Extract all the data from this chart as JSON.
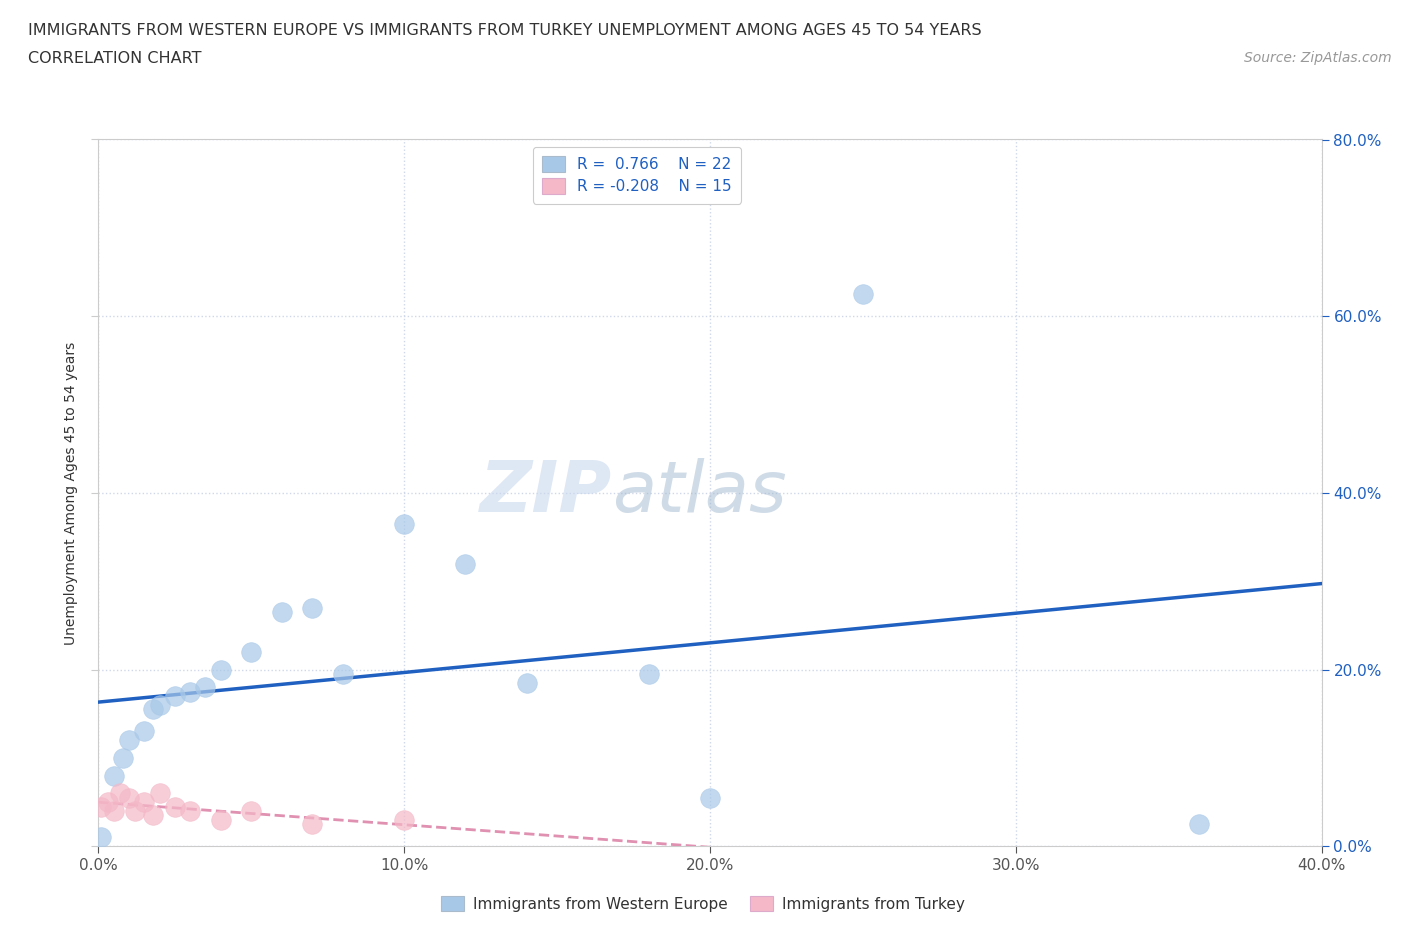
{
  "title_line1": "IMMIGRANTS FROM WESTERN EUROPE VS IMMIGRANTS FROM TURKEY UNEMPLOYMENT AMONG AGES 45 TO 54 YEARS",
  "title_line2": "CORRELATION CHART",
  "source_text": "Source: ZipAtlas.com",
  "ylabel": "Unemployment Among Ages 45 to 54 years",
  "watermark_zip": "ZIP",
  "watermark_atlas": "atlas",
  "western_europe_x": [
    0.001,
    0.005,
    0.008,
    0.01,
    0.015,
    0.018,
    0.02,
    0.025,
    0.03,
    0.035,
    0.04,
    0.05,
    0.06,
    0.07,
    0.08,
    0.1,
    0.12,
    0.14,
    0.18,
    0.2,
    0.25,
    0.36
  ],
  "western_europe_y": [
    0.01,
    0.08,
    0.1,
    0.12,
    0.13,
    0.155,
    0.16,
    0.17,
    0.175,
    0.18,
    0.2,
    0.22,
    0.265,
    0.27,
    0.195,
    0.365,
    0.32,
    0.185,
    0.195,
    0.055,
    0.625,
    0.025
  ],
  "turkey_x": [
    0.001,
    0.003,
    0.005,
    0.007,
    0.01,
    0.012,
    0.015,
    0.018,
    0.02,
    0.025,
    0.03,
    0.04,
    0.05,
    0.07,
    0.1
  ],
  "turkey_y": [
    0.045,
    0.05,
    0.04,
    0.06,
    0.055,
    0.04,
    0.05,
    0.035,
    0.06,
    0.045,
    0.04,
    0.03,
    0.04,
    0.025,
    0.03
  ],
  "R_western": 0.766,
  "N_western": 22,
  "R_turkey": -0.208,
  "N_turkey": 15,
  "blue_scatter_color": "#a8c8e8",
  "pink_scatter_color": "#f4b8c8",
  "blue_line_color": "#2060c0",
  "pink_line_color": "#e090b0",
  "xlim": [
    0.0,
    0.4
  ],
  "ylim": [
    0.0,
    0.8
  ],
  "xtick_values": [
    0.0,
    0.1,
    0.2,
    0.3,
    0.4
  ],
  "xtick_labels": [
    "0.0%",
    "10.0%",
    "20.0%",
    "30.0%",
    "40.0%"
  ],
  "ytick_values": [
    0.0,
    0.2,
    0.4,
    0.6,
    0.8
  ],
  "ytick_labels_right": [
    "0.0%",
    "20.0%",
    "40.0%",
    "60.0%",
    "80.0%"
  ],
  "legend_label_western": "Immigrants from Western Europe",
  "legend_label_turkey": "Immigrants from Turkey",
  "title_fontsize": 11.5,
  "axis_label_fontsize": 10,
  "tick_fontsize": 11,
  "legend_fontsize": 11,
  "source_fontsize": 10,
  "watermark_fontsize_zip": 52,
  "watermark_fontsize_atlas": 52,
  "bg_color": "#ffffff",
  "grid_color": "#d0d8e8"
}
